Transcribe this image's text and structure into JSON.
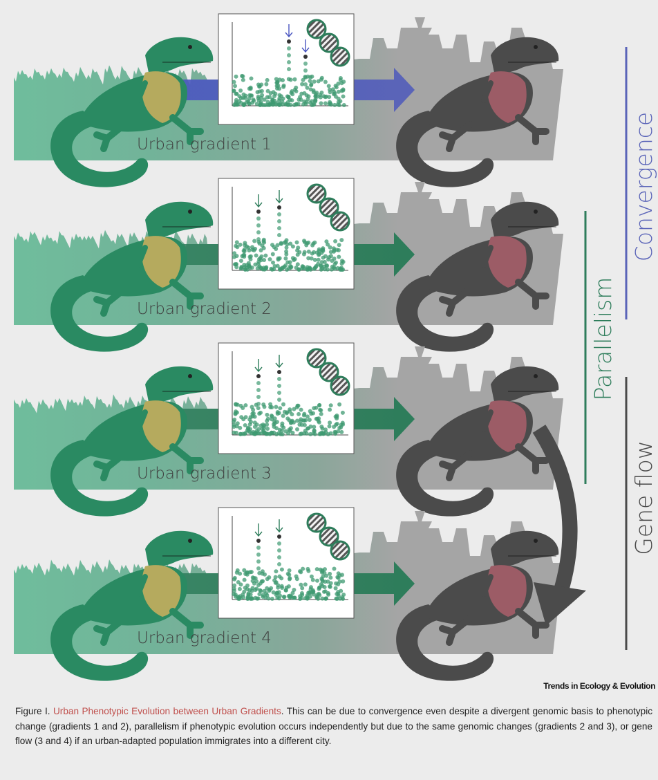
{
  "figure": {
    "rows": [
      {
        "label": "Urban gradient 1",
        "arrow_color": "#5a64b8",
        "marker_color": "#4a56c0"
      },
      {
        "label": "Urban gradient 2",
        "arrow_color": "#2e7d5b",
        "marker_color": "#2e7d5b"
      },
      {
        "label": "Urban gradient 3",
        "arrow_color": "#2e7d5b",
        "marker_color": "#2e7d5b"
      },
      {
        "label": "Urban gradient 4",
        "arrow_color": "#2e7d5b",
        "marker_color": "#2e7d5b"
      }
    ],
    "side_labels": {
      "convergence": "Convergence",
      "parallelism": "Parallelism",
      "gene_flow": "Gene flow"
    },
    "colors": {
      "convergence": "#5a64b8",
      "parallelism": "#2e7d5b",
      "gene_flow": "#4a4a4a",
      "forest": "#6fbd9c",
      "city": "#a5a5a5",
      "lizard_green": "#2a8a62",
      "lizard_dark": "#4b4b4b",
      "dewlap_yellow": "#b5aa5e",
      "dewlap_red": "#9c5c66"
    }
  },
  "journal": "Trends in Ecology & Evolution",
  "caption": {
    "label": "Figure I.",
    "title": "Urban Phenotypic Evolution between Urban Gradients",
    "body": "This can be due to convergence even despite a divergent genomic basis to phenotypic change (gradients 1 and 2), parallelism if phenotypic evolution occurs independently but due to the same genomic changes (gradients 2 and 3), or gene flow (3 and 4) if an urban-adapted population immigrates into a different city."
  }
}
